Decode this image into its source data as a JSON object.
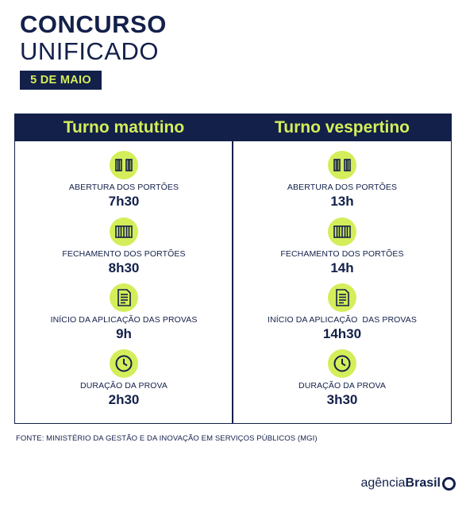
{
  "heading": {
    "line1": "CONCURSO",
    "line2": "UNIFICADO",
    "date": "5 DE MAIO"
  },
  "colors": {
    "navy": "#13204a",
    "lime": "#d4ee5a"
  },
  "shifts": [
    {
      "title": "Turno matutino",
      "items": [
        {
          "icon": "open-gate-icon",
          "label": "ABERTURA DOS PORTÕES",
          "value": "7h30"
        },
        {
          "icon": "closed-gate-icon",
          "label": "FECHAMENTO DOS PORTÕES",
          "value": "8h30"
        },
        {
          "icon": "exam-document-icon",
          "label": "INÍCIO DA APLICAÇÃO DAS PROVAS",
          "value": "9h"
        },
        {
          "icon": "clock-icon",
          "label": "DURAÇÃO DA PROVA",
          "value": "2h30"
        }
      ]
    },
    {
      "title": "Turno vespertino",
      "items": [
        {
          "icon": "open-gate-icon",
          "label": "ABERTURA DOS PORTÕES",
          "value": "13h"
        },
        {
          "icon": "closed-gate-icon",
          "label": "FECHAMENTO DOS PORTÕES",
          "value": "14h"
        },
        {
          "icon": "exam-document-icon",
          "label": "INÍCIO DA APLICAÇÃO  DAS PROVAS",
          "value": "14h30"
        },
        {
          "icon": "clock-icon",
          "label": "DURAÇÃO DA PROVA",
          "value": "3h30"
        }
      ]
    }
  ],
  "source": "FONTE: MINISTÉRIO DA GESTÃO E DA INOVAÇÃO EM SERVIÇOS PÚBLICOS (MGI)",
  "logo": {
    "light": "agência",
    "bold": "Brasil"
  }
}
